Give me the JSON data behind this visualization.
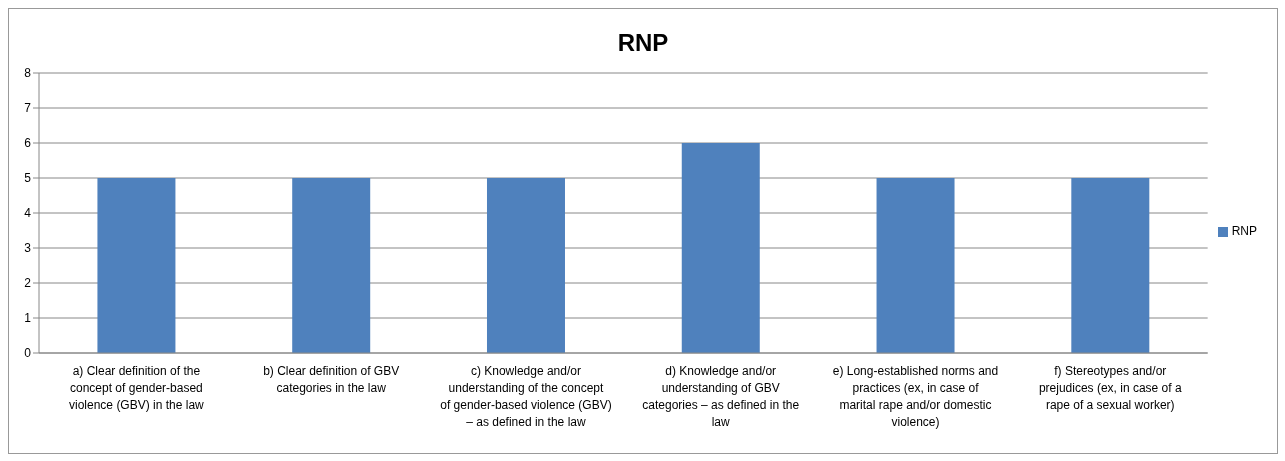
{
  "chart_data": {
    "type": "bar",
    "title": "RNP",
    "categories": [
      "a) Clear definition of the concept of gender-based violence (GBV) in the law",
      "b) Clear definition of GBV categories in the law",
      "c) Knowledge and/or understanding of the concept of gender-based violence (GBV) – as defined in the law",
      "d) Knowledge and/or understanding of GBV categories – as defined in the law",
      "e)  Long-established norms and practices (ex, in case of marital rape and/or domestic violence)",
      "f)  Stereotypes and/or prejudices (ex, in case of a rape of a sexual worker)"
    ],
    "series": [
      {
        "name": "RNP",
        "color": "#4f81bd",
        "values": [
          5,
          5,
          5,
          6,
          5,
          5
        ]
      }
    ],
    "ylim": [
      0,
      8
    ],
    "yticks": [
      0,
      1,
      2,
      3,
      4,
      5,
      6,
      7,
      8
    ],
    "grid": "y",
    "legend": "right"
  }
}
